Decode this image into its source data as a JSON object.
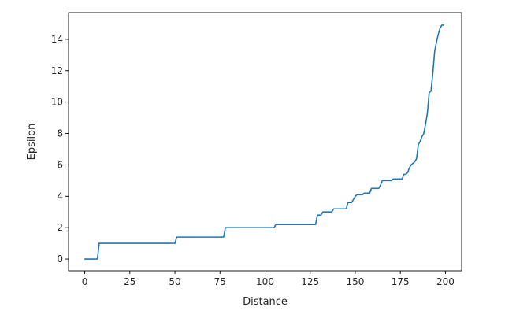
{
  "chart_data": {
    "type": "line",
    "xlabel": "Distance",
    "ylabel": "Epsilon",
    "xlim": [
      -9,
      209
    ],
    "ylim": [
      -0.75,
      15.7
    ],
    "xticks": [
      0,
      25,
      50,
      75,
      100,
      125,
      150,
      175,
      200
    ],
    "yticks": [
      0,
      2,
      4,
      6,
      8,
      10,
      12,
      14
    ],
    "grid": false,
    "color": "#1f77b4",
    "series": [
      {
        "x": [
          0,
          7,
          8,
          50,
          51,
          77,
          78,
          105,
          106,
          128,
          129,
          131,
          132,
          137,
          138,
          145,
          146,
          148,
          149,
          150,
          151,
          154,
          155,
          158,
          159,
          163,
          164,
          165,
          166,
          170,
          171,
          175,
          176,
          177,
          178,
          179,
          180,
          181,
          182,
          183,
          184,
          185,
          186,
          187,
          188,
          189,
          190,
          191,
          192,
          193,
          194,
          195,
          196,
          197,
          198,
          199
        ],
        "y": [
          0,
          0,
          1,
          1,
          1.4,
          1.4,
          2.0,
          2.0,
          2.2,
          2.2,
          2.8,
          2.8,
          3.0,
          3.0,
          3.2,
          3.2,
          3.6,
          3.6,
          3.8,
          4.0,
          4.1,
          4.1,
          4.2,
          4.2,
          4.5,
          4.5,
          4.7,
          5.0,
          5.0,
          5.0,
          5.1,
          5.1,
          5.1,
          5.4,
          5.4,
          5.5,
          5.8,
          6.0,
          6.1,
          6.2,
          6.4,
          7.3,
          7.5,
          7.8,
          8.0,
          8.6,
          9.3,
          10.6,
          10.7,
          11.8,
          13.2,
          13.8,
          14.3,
          14.7,
          14.9,
          14.9
        ]
      }
    ]
  }
}
